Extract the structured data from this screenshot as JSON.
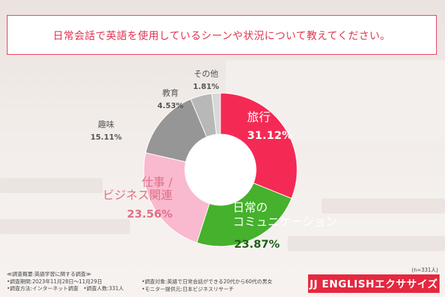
{
  "title": "日常会話で英語を使用しているシーンや状況について教えてください。",
  "chart_data": {
    "type": "pie",
    "variant": "donut",
    "slices": [
      {
        "label": "旅行",
        "value": 31.12,
        "value_text": "31.12%",
        "color": "#f42a55",
        "label_color": "#ffffff"
      },
      {
        "label": "日常の\nコミュニケーション",
        "value": 23.87,
        "value_text": "23.87%",
        "color": "#45b12c",
        "label_color": "#ffffff"
      },
      {
        "label": "仕事 /\nビジネス関連",
        "value": 23.56,
        "value_text": "23.56%",
        "color": "#f9b9cf",
        "label_color": "#e07086"
      },
      {
        "label": "趣味",
        "value": 15.11,
        "value_text": "15.11%",
        "color": "#969696",
        "label_color": "#555555"
      },
      {
        "label": "教育",
        "value": 4.53,
        "value_text": "4.53%",
        "color": "#b8b8b8",
        "label_color": "#555555"
      },
      {
        "label": "その他",
        "value": 1.81,
        "value_text": "1.81%",
        "color": "#d8d8d8",
        "label_color": "#555555"
      }
    ]
  },
  "footer": {
    "summary": "≪調査概要:英語学習に関する調査≫",
    "period": "•調査期間:2023年11月28日〜11月29日",
    "method": "•調査方法:インターネット調査　•調査人数:331人",
    "target": "•調査対象:英語で日常会話ができる20代から60代の男女",
    "provider": "•モニター提供元:日本ビジネスリサーチ"
  },
  "n_note": "(n=331人)",
  "logo": "JJ ENGLISHエクササイズ"
}
